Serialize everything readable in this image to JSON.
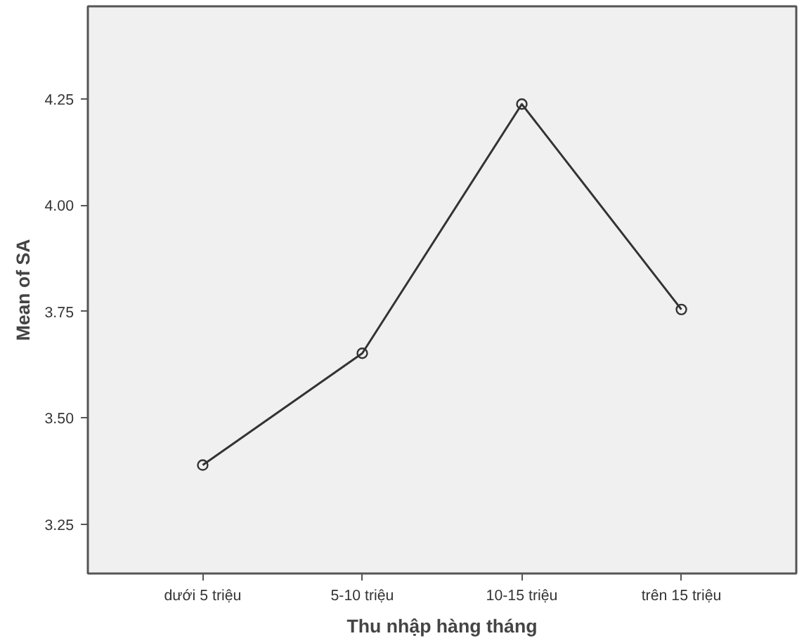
{
  "chart_data": {
    "type": "line",
    "xlabel": "Thu nhập hàng tháng",
    "ylabel": "Mean of SA",
    "categories": [
      "dưới 5 triệu",
      "5-10 triệu",
      "10-15 triệu",
      "trên 15 triệu"
    ],
    "series": [
      {
        "color": "#333333",
        "values": [
          3.389,
          3.652,
          4.238,
          3.755
        ]
      }
    ],
    "ylim": [
      3.134,
      4.468
    ],
    "yticks": [
      {
        "value": 3.25,
        "label": "3.25"
      },
      {
        "value": 3.5,
        "label": "3.50"
      },
      {
        "value": 3.75,
        "label": "3.75"
      },
      {
        "value": 4.0,
        "label": "4.00"
      },
      {
        "value": 4.25,
        "label": "4.25"
      }
    ],
    "grid": false,
    "marker": "circle",
    "line_style": "solid"
  }
}
